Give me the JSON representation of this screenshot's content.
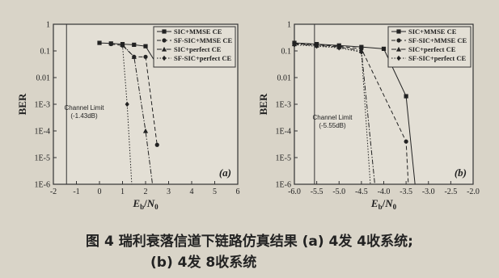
{
  "caption": {
    "line1": "图 4 瑞利衰落信道下链路仿真结果 (a) 4发 4收系统;",
    "line2": "(b) 4发 8收系统"
  },
  "chart_data": [
    {
      "type": "line",
      "panel_label": "(a)",
      "xlabel": "Eb/N0",
      "ylabel": "BER",
      "x_ticks": [
        "-2",
        "-1",
        "0",
        "1",
        "2",
        "3",
        "4",
        "5",
        "6"
      ],
      "y_ticks": [
        "1",
        "0.1",
        "0.01",
        "1E-3",
        "1E-4",
        "1E-5",
        "1E-6"
      ],
      "xlim": [
        -2,
        6
      ],
      "ylim": [
        1e-06,
        1
      ],
      "y_scale": "log",
      "legend_position": "top-right",
      "annotation": {
        "text": [
          "Channel Limit",
          "(-1.43dB)"
        ]
      },
      "channel_limit_x": -1.43,
      "series": [
        {
          "name": "SIC+MMSE CE",
          "x": [
            0,
            0.5,
            1,
            1.5,
            2,
            2.5
          ],
          "y": [
            0.2,
            0.19,
            0.18,
            0.17,
            0.15,
            0.03
          ],
          "marker": "square",
          "dash": "solid"
        },
        {
          "name": "SF-SIC+MMSE CE",
          "x": [
            0.5,
            1,
            1.5,
            2,
            2.5
          ],
          "y": [
            0.18,
            0.16,
            0.06,
            0.06,
            3e-05
          ],
          "marker": "circle",
          "dash": "dash"
        },
        {
          "name": "SIC+perfect CE",
          "x": [
            1,
            1.5,
            2,
            2.3
          ],
          "y": [
            0.17,
            0.06,
            0.0001,
            1e-06
          ],
          "marker": "triangle",
          "dash": "dashdot"
        },
        {
          "name": "SF-SIC+perfect CE",
          "x": [
            1,
            1.2,
            1.4
          ],
          "y": [
            0.16,
            0.001,
            1e-06
          ],
          "marker": "diamond",
          "dash": "dot"
        }
      ]
    },
    {
      "type": "line",
      "panel_label": "(b)",
      "xlabel": "Eb/N0",
      "ylabel": "BER",
      "x_ticks": [
        "-6.0",
        "-5.5",
        "-5.0",
        "-4.5",
        "-4.0",
        "-3.5",
        "-3.0",
        "-2.5",
        "-2.0"
      ],
      "y_ticks": [
        "1",
        "0.1",
        "0.01",
        "1E-3",
        "1E-4",
        "1E-5",
        "1E-6"
      ],
      "xlim": [
        -6,
        -2
      ],
      "ylim": [
        1e-06,
        1
      ],
      "y_scale": "log",
      "legend_position": "top-right",
      "annotation": {
        "text": [
          "Channel Limit",
          "(-5.55dB)"
        ]
      },
      "channel_limit_x": -5.55,
      "series": [
        {
          "name": "SIC+MMSE CE",
          "x": [
            -6,
            -5.5,
            -5,
            -4.5,
            -4,
            -3.5,
            -3.3
          ],
          "y": [
            0.2,
            0.18,
            0.16,
            0.14,
            0.12,
            0.002,
            1e-06
          ],
          "marker": "square",
          "dash": "solid"
        },
        {
          "name": "SF-SIC+MMSE CE",
          "x": [
            -6,
            -5.5,
            -5,
            -4.5,
            -3.5,
            -3.45
          ],
          "y": [
            0.19,
            0.17,
            0.15,
            0.12,
            4e-05,
            1e-06
          ],
          "marker": "circle",
          "dash": "dash"
        },
        {
          "name": "SIC+perfect CE",
          "x": [
            -6,
            -5.5,
            -5,
            -4.5,
            -4.2
          ],
          "y": [
            0.18,
            0.16,
            0.14,
            0.1,
            1e-06
          ],
          "marker": "triangle",
          "dash": "dashdot"
        },
        {
          "name": "SF-SIC+perfect CE",
          "x": [
            -6,
            -5.5,
            -5,
            -4.5,
            -4.3
          ],
          "y": [
            0.17,
            0.15,
            0.13,
            0.09,
            1e-06
          ],
          "marker": "diamond",
          "dash": "dot"
        }
      ]
    }
  ]
}
